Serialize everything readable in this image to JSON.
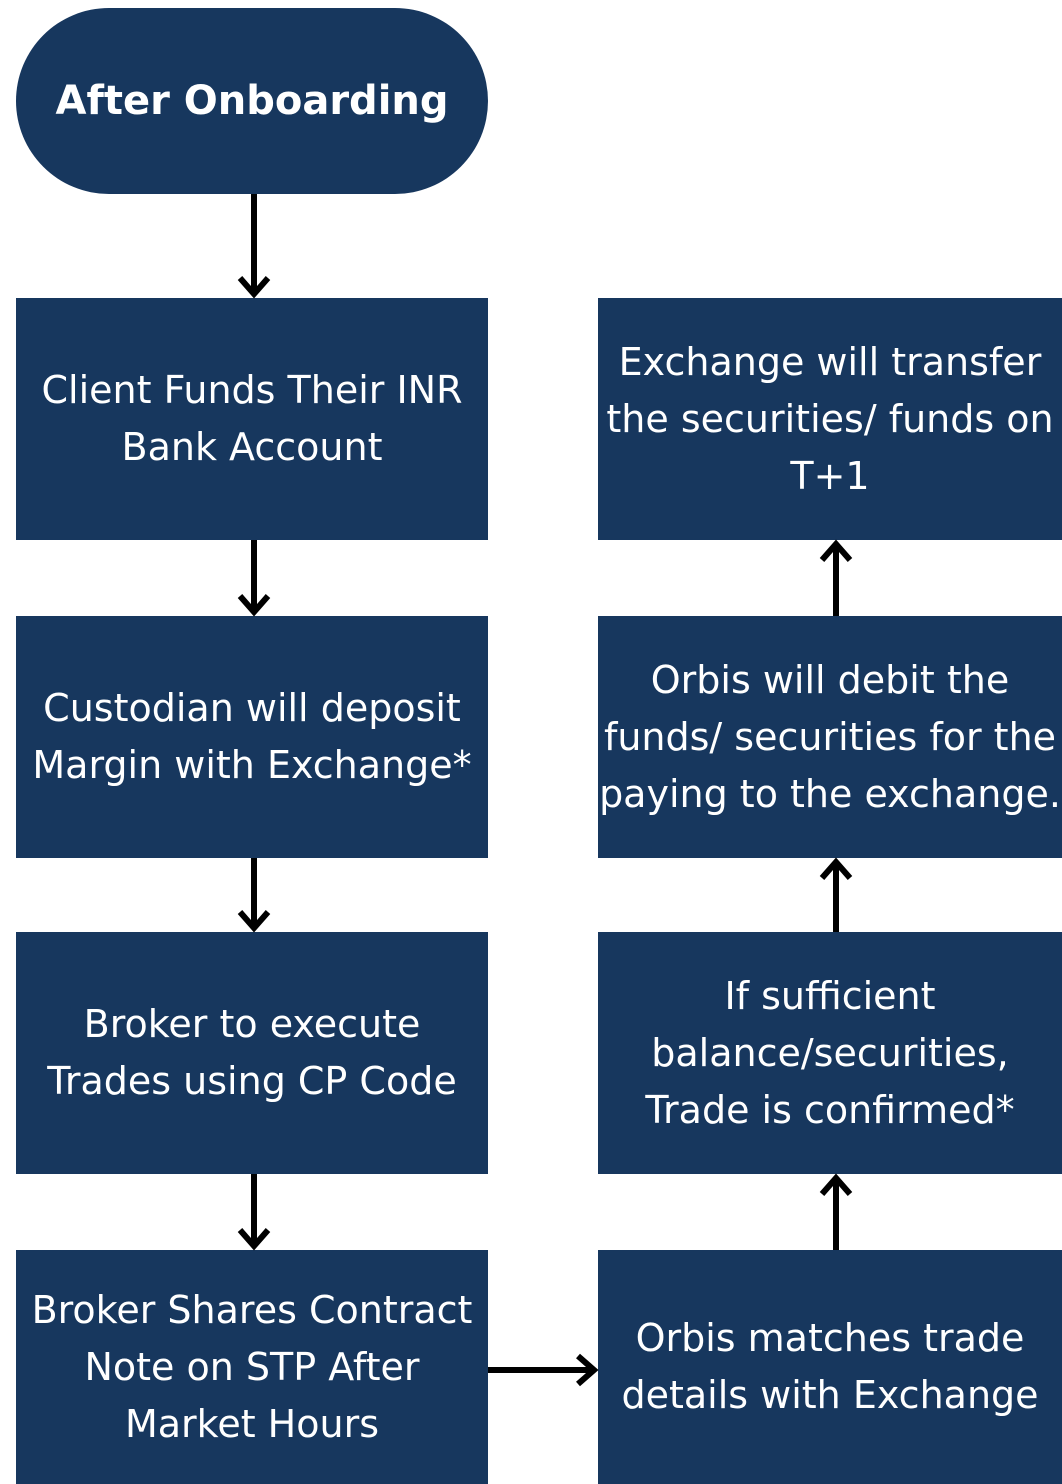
{
  "nodes": [
    {
      "label": "After Onboarding"
    },
    {
      "label": "Client Funds Their INR\nBank Account"
    },
    {
      "label": "Custodian will deposit\nMargin with Exchange*"
    },
    {
      "label": "Broker to execute\nTrades using CP Code"
    },
    {
      "label": "Broker Shares Contract\nNote on STP After\nMarket Hours"
    },
    {
      "label": "Orbis matches trade\ndetails with Exchange"
    },
    {
      "label": "If sufficient\nbalance/securities,\nTrade is confirmed*"
    },
    {
      "label": "Orbis will debit the\nfunds/ securities for the\npaying to the exchange."
    },
    {
      "label": "Exchange will transfer\nthe securities/ funds on\nT+1"
    }
  ]
}
